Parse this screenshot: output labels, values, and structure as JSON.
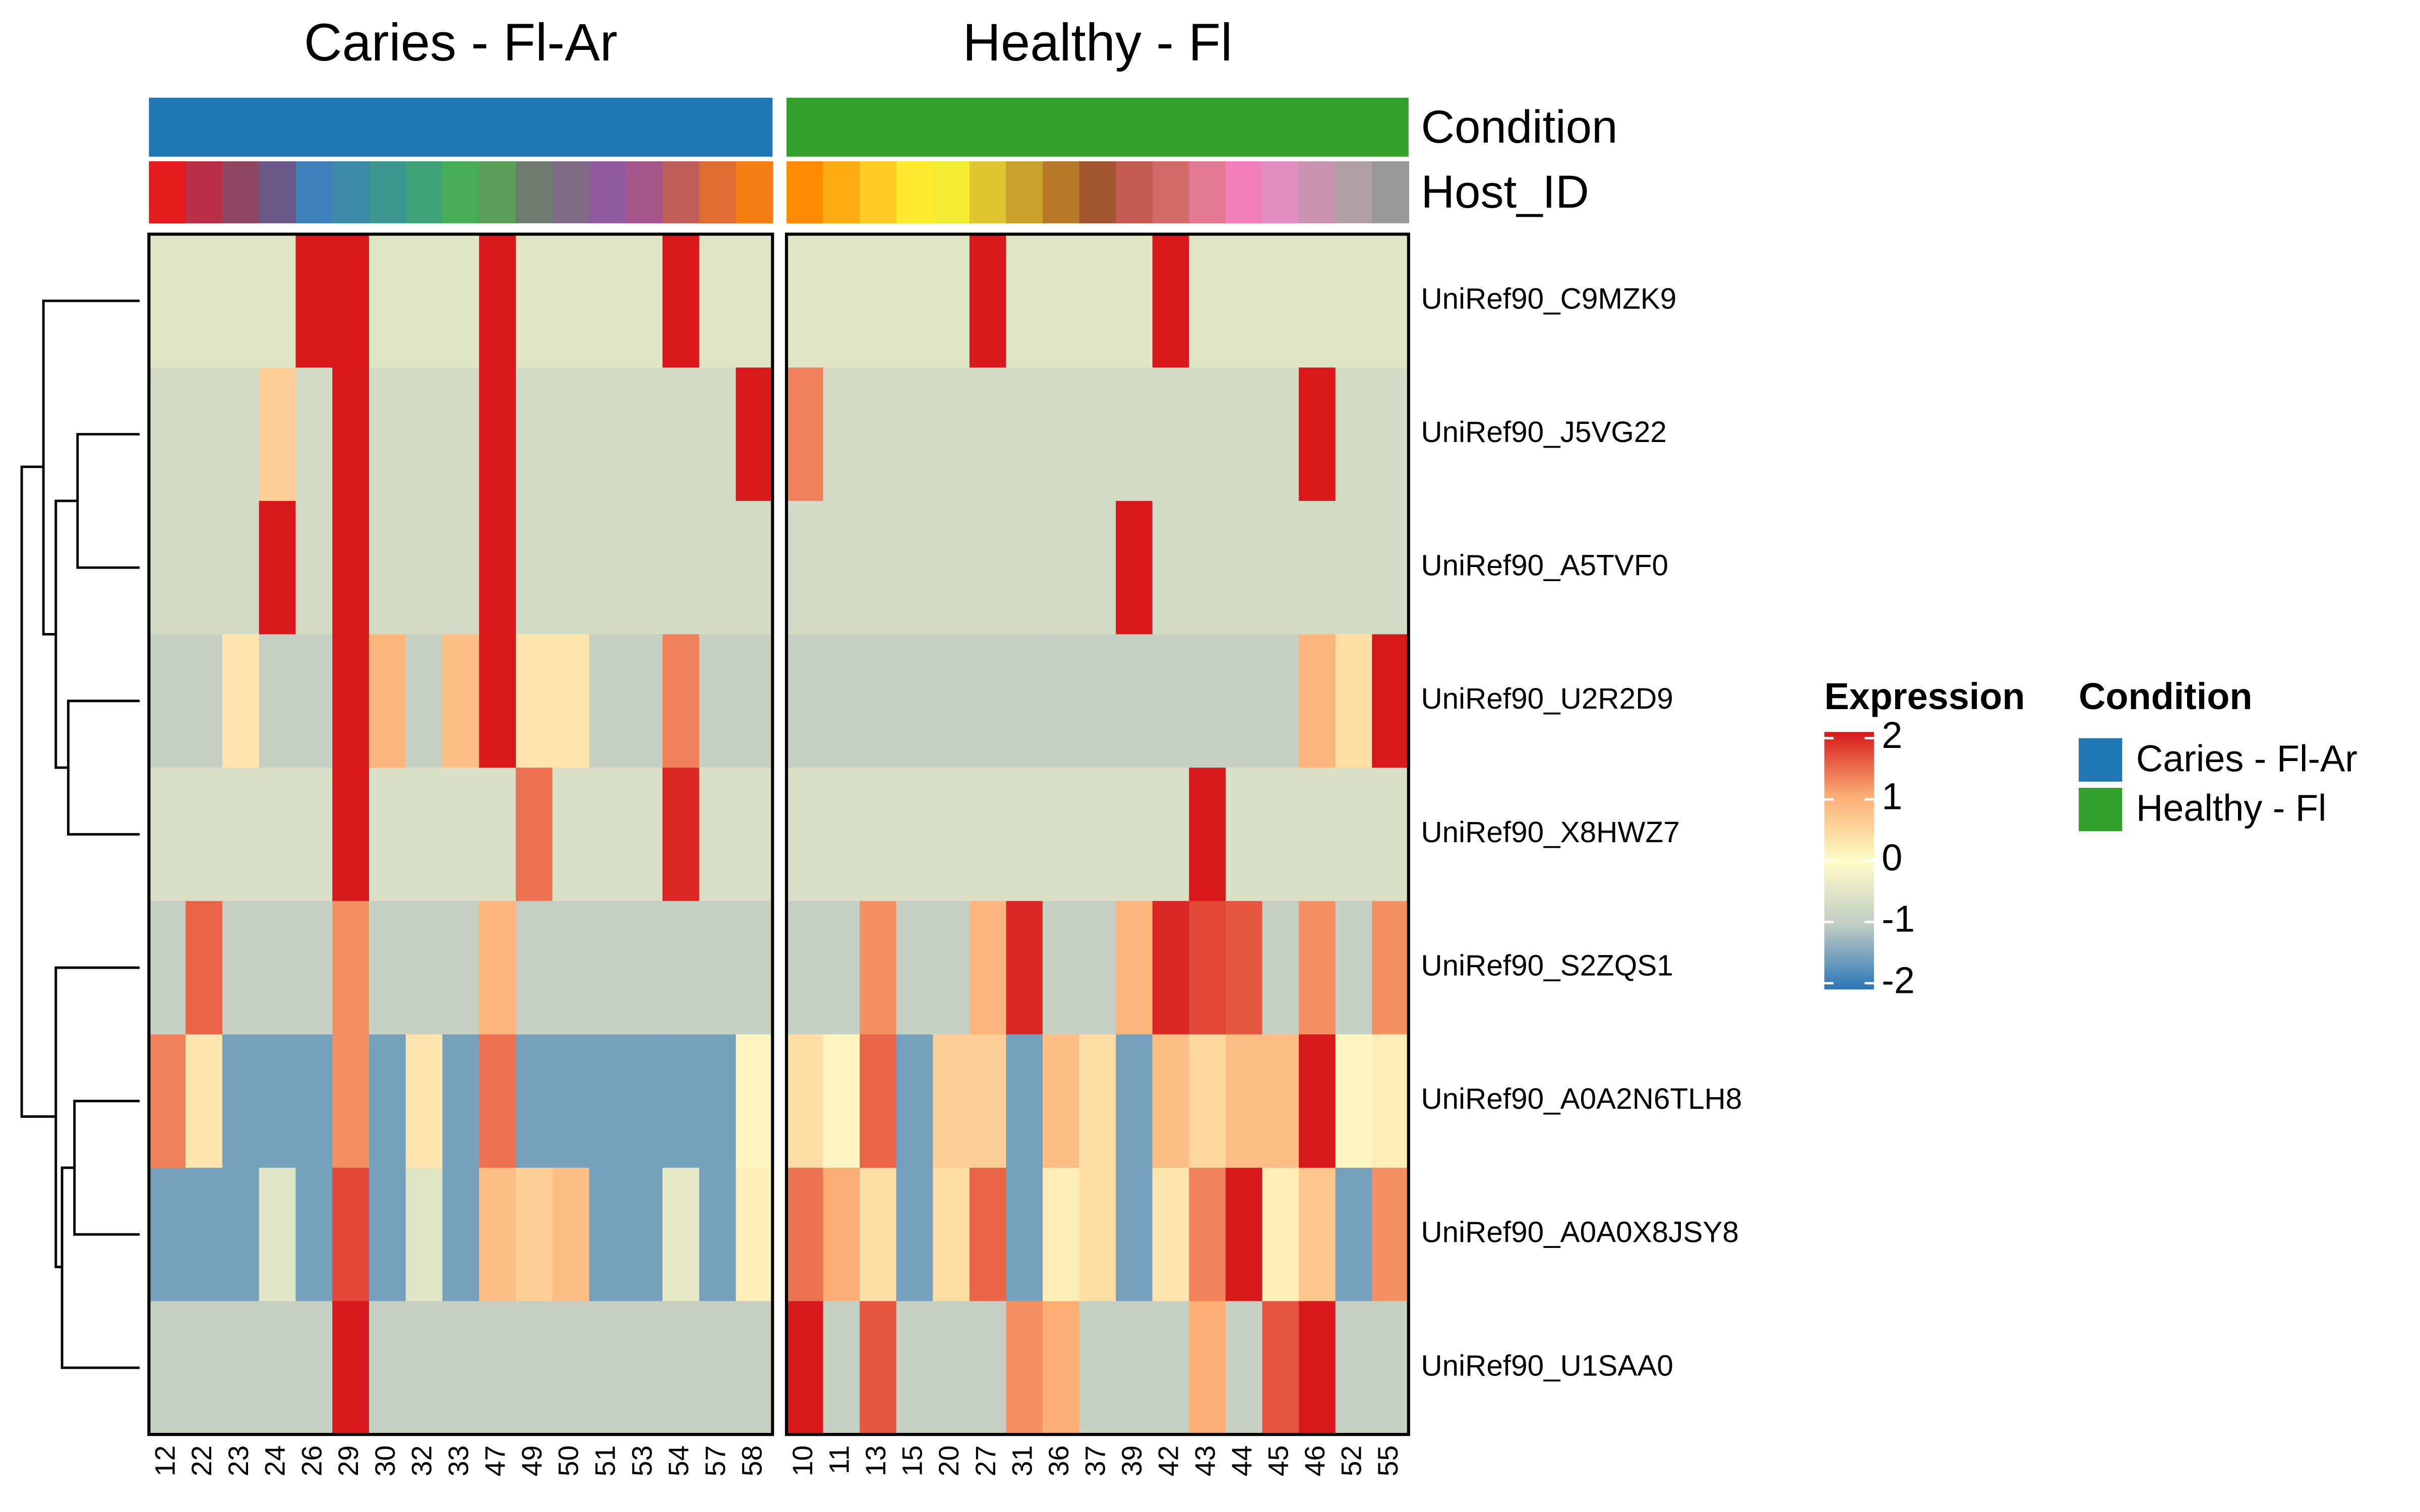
{
  "chart_data": {
    "type": "heatmap",
    "groups": [
      {
        "name": "Caries - Fl-Ar",
        "color": "#2077b4",
        "columns": [
          "12",
          "22",
          "23",
          "24",
          "26",
          "29",
          "30",
          "32",
          "33",
          "47",
          "49",
          "50",
          "51",
          "53",
          "54",
          "57",
          "58"
        ],
        "column_colors": [
          "#e41a1c",
          "#b93048",
          "#8e4660",
          "#6a5a8a",
          "#3f7fba",
          "#3a8aa8",
          "#3b9790",
          "#3ea37a",
          "#47ae57",
          "#5a9e5a",
          "#6e7b6e",
          "#7f6b83",
          "#905b9e",
          "#a5578d",
          "#c05e5a",
          "#df6c33",
          "#f57e12"
        ]
      },
      {
        "name": "Healthy - Fl",
        "color": "#33a02c",
        "columns": [
          "10",
          "11",
          "13",
          "15",
          "20",
          "27",
          "31",
          "36",
          "37",
          "39",
          "42",
          "43",
          "44",
          "45",
          "46",
          "52",
          "55"
        ],
        "column_colors": [
          "#ff8c00",
          "#ffac13",
          "#ffcc25",
          "#ffea2e",
          "#f2ed33",
          "#e0c430",
          "#c9a02b",
          "#b77828",
          "#a35530",
          "#c25c53",
          "#d36a6a",
          "#e37a93",
          "#f27fbb",
          "#df8cc0",
          "#c894ae",
          "#b0a0a6",
          "#999999"
        ]
      }
    ],
    "annotation_labels": [
      "Condition",
      "Host_ID"
    ],
    "rows": [
      "UniRef90_C9MZK9",
      "UniRef90_J5VG22",
      "UniRef90_A5TVF0",
      "UniRef90_U2R2D9",
      "UniRef90_X8HWZ7",
      "UniRef90_S2ZQS1",
      "UniRef90_A0A2N6TLH8",
      "UniRef90_A0A0X8JSY8",
      "UniRef90_U1SAA0"
    ],
    "values": [
      [
        -0.5,
        -0.5,
        -0.5,
        -0.5,
        2.4,
        2.4,
        -0.5,
        -0.5,
        -0.5,
        2.4,
        -0.5,
        -0.5,
        -0.5,
        -0.5,
        2.4,
        -0.5,
        -0.5,
        -0.5,
        -0.5,
        -0.5,
        -0.5,
        -0.5,
        2.4,
        -0.5,
        -0.5,
        -0.5,
        -0.5,
        2.4,
        -0.5,
        -0.5,
        -0.5,
        -0.5,
        -0.5,
        -0.5
      ],
      [
        -0.7,
        -0.7,
        -0.7,
        0.6,
        -0.7,
        2.4,
        -0.7,
        -0.7,
        -0.7,
        2.4,
        -0.7,
        -0.7,
        -0.7,
        -0.7,
        -0.7,
        -0.7,
        2.4,
        1.3,
        -0.7,
        -0.7,
        -0.7,
        -0.7,
        -0.7,
        -0.7,
        -0.7,
        -0.7,
        -0.7,
        -0.7,
        -0.7,
        -0.7,
        -0.7,
        2.4,
        -0.7,
        -0.7
      ],
      [
        -0.7,
        -0.7,
        -0.7,
        2.2,
        -0.7,
        2.4,
        -0.7,
        -0.7,
        -0.7,
        2.4,
        -0.7,
        -0.7,
        -0.7,
        -0.7,
        -0.7,
        -0.7,
        -0.7,
        -0.7,
        -0.7,
        -0.7,
        -0.7,
        -0.7,
        -0.7,
        -0.7,
        -0.7,
        -0.7,
        2.4,
        -0.7,
        -0.7,
        -0.7,
        -0.7,
        -0.7,
        -0.7,
        -0.7
      ],
      [
        -0.9,
        -0.9,
        0.3,
        -0.9,
        -0.9,
        2.4,
        0.9,
        -0.9,
        0.8,
        2.4,
        0.3,
        0.3,
        -0.9,
        -0.9,
        1.3,
        -0.9,
        -0.9,
        -0.9,
        -0.9,
        -0.9,
        -0.9,
        -0.9,
        -0.9,
        -0.9,
        -0.9,
        -0.9,
        -0.9,
        -0.9,
        -0.9,
        -0.9,
        -0.9,
        0.9,
        0.4,
        2.2
      ],
      [
        -0.6,
        -0.6,
        -0.6,
        -0.6,
        -0.6,
        2.4,
        -0.6,
        -0.6,
        -0.6,
        -0.6,
        1.4,
        -0.6,
        -0.6,
        -0.6,
        1.9,
        -0.6,
        -0.6,
        -0.6,
        -0.6,
        -0.6,
        -0.6,
        -0.6,
        -0.6,
        -0.6,
        -0.6,
        -0.6,
        -0.6,
        -0.6,
        2.4,
        -0.6,
        -0.6,
        -0.6,
        -0.6,
        -0.6
      ],
      [
        -0.9,
        1.5,
        -0.9,
        -0.9,
        -0.9,
        1.2,
        -0.9,
        -0.9,
        -0.9,
        0.9,
        -0.9,
        -0.9,
        -0.9,
        -0.9,
        -0.9,
        -0.9,
        -0.9,
        -0.9,
        -0.9,
        1.2,
        -0.9,
        -0.9,
        0.9,
        1.9,
        -0.9,
        -0.9,
        0.9,
        1.9,
        1.7,
        1.6,
        -0.9,
        1.2,
        -0.9,
        1.2
      ],
      [
        1.3,
        0.3,
        -1.5,
        -1.5,
        -1.5,
        1.2,
        -1.5,
        0.3,
        -1.5,
        1.4,
        -1.5,
        -1.5,
        -1.5,
        -1.5,
        -1.5,
        -1.5,
        0.1,
        0.4,
        0.1,
        1.5,
        -1.5,
        0.6,
        0.6,
        -1.5,
        0.8,
        0.4,
        -1.5,
        0.8,
        0.5,
        0.8,
        0.8,
        2.1,
        0.1,
        0.2
      ],
      [
        -1.5,
        -1.5,
        -1.5,
        -0.5,
        -1.5,
        1.7,
        -1.5,
        -0.5,
        -1.5,
        0.8,
        0.6,
        0.8,
        -1.5,
        -1.5,
        -0.4,
        -1.5,
        0.2,
        1.4,
        1.0,
        0.4,
        -1.5,
        0.4,
        1.5,
        -1.5,
        0.2,
        0.4,
        -1.5,
        0.3,
        1.3,
        2.0,
        0.2,
        0.7,
        -1.5,
        1.2
      ],
      [
        -0.9,
        -0.9,
        -0.9,
        -0.9,
        -0.9,
        2.0,
        -0.9,
        -0.9,
        -0.9,
        -0.9,
        -0.9,
        -0.9,
        -0.9,
        -0.9,
        -0.9,
        -0.9,
        -0.9,
        2.0,
        -0.9,
        1.6,
        -0.9,
        -0.9,
        -0.9,
        1.2,
        1.0,
        -0.9,
        -0.9,
        -0.9,
        1.0,
        -0.9,
        1.6,
        2.0,
        -0.9,
        -0.9
      ]
    ],
    "colorbar": {
      "title": "Expression",
      "lim": [
        -2,
        2
      ],
      "ticks": [
        -2,
        -1,
        0,
        1,
        2
      ],
      "colors": [
        "#2c75b6",
        "#c0ccc4",
        "#fffdc8",
        "#fcae74",
        "#d7191c"
      ]
    },
    "legend_title": "Condition"
  }
}
